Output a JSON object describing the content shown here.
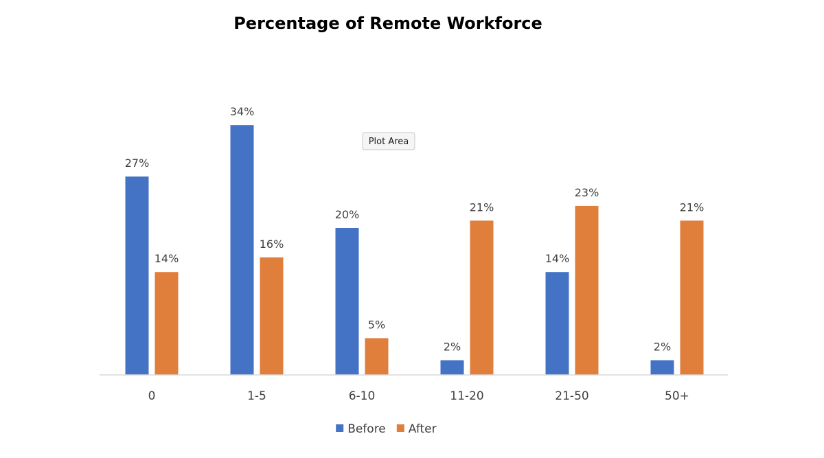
{
  "chart_data": {
    "type": "bar",
    "title": "Percentage of Remote Workforce",
    "categories": [
      "0",
      "1-5",
      "6-10",
      "11-20",
      "21-50",
      "50+"
    ],
    "series": [
      {
        "name": "Before",
        "values": [
          27,
          34,
          20,
          2,
          14,
          2
        ],
        "color": "#4472C4"
      },
      {
        "name": "After",
        "values": [
          14,
          16,
          5,
          21,
          23,
          21
        ],
        "color": "#E07E3C"
      }
    ],
    "value_format": "percent",
    "ylim": [
      0,
      40
    ],
    "grid": false,
    "legend": "bottom-center",
    "xlabel": "",
    "ylabel": ""
  },
  "tooltip": {
    "text": "Plot Area"
  }
}
